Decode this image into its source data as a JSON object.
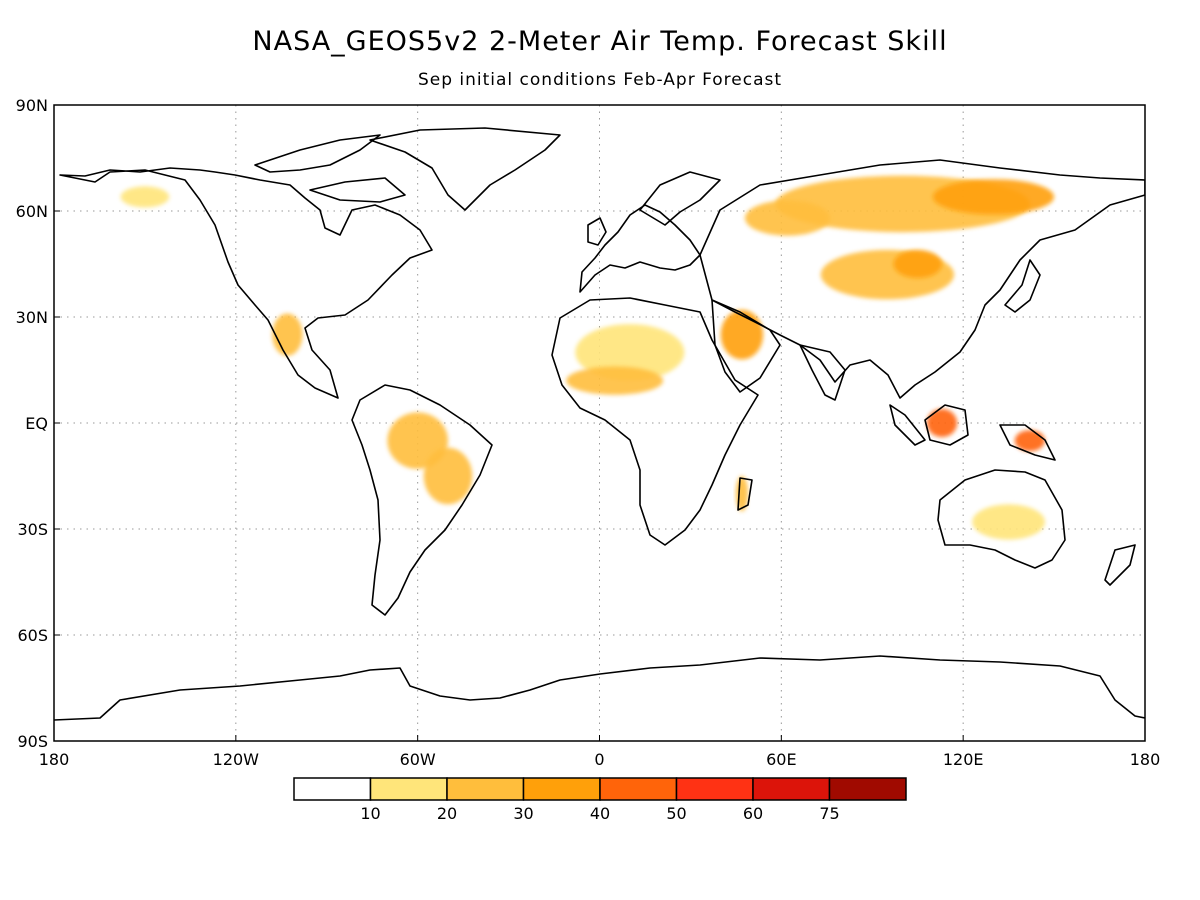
{
  "title": "NASA_GEOS5v2 2-Meter Air Temp. Forecast Skill",
  "subtitle": "Sep initial conditions  Feb-Apr Forecast",
  "map": {
    "lon_range": [
      -180,
      180
    ],
    "lat_range": [
      -90,
      90
    ],
    "gridlines": "dotted",
    "lat_ticks": [
      {
        "value": 90,
        "label": "90N"
      },
      {
        "value": 60,
        "label": "60N"
      },
      {
        "value": 30,
        "label": "30N"
      },
      {
        "value": 0,
        "label": "EQ"
      },
      {
        "value": -30,
        "label": "30S"
      },
      {
        "value": -60,
        "label": "60S"
      },
      {
        "value": -90,
        "label": "90S"
      }
    ],
    "lon_ticks": [
      {
        "value": -180,
        "label": "180"
      },
      {
        "value": -120,
        "label": "120W"
      },
      {
        "value": -60,
        "label": "60W"
      },
      {
        "value": 0,
        "label": "0"
      },
      {
        "value": 60,
        "label": "60E"
      },
      {
        "value": 120,
        "label": "120E"
      },
      {
        "value": 180,
        "label": "180"
      }
    ]
  },
  "colorbar": {
    "bins": [
      {
        "color": "#ffffff"
      },
      {
        "color": "#ffe57a"
      },
      {
        "color": "#ffbe3c"
      },
      {
        "color": "#ffa00a"
      },
      {
        "color": "#ff640a"
      },
      {
        "color": "#ff3214"
      },
      {
        "color": "#dc140a"
      },
      {
        "color": "#a00a00"
      }
    ],
    "labels": [
      "10",
      "20",
      "30",
      "40",
      "50",
      "60",
      "75"
    ]
  },
  "skill_regions": [
    {
      "name": "siberia",
      "lon": 100,
      "lat": 62,
      "rx": 42,
      "ry": 8,
      "level": 2
    },
    {
      "name": "east-siberia",
      "lon": 130,
      "lat": 64,
      "rx": 20,
      "ry": 5,
      "level": 3
    },
    {
      "name": "ural",
      "lon": 62,
      "lat": 58,
      "rx": 14,
      "ry": 5,
      "level": 2
    },
    {
      "name": "central-asia",
      "lon": 95,
      "lat": 42,
      "rx": 22,
      "ry": 7,
      "level": 2
    },
    {
      "name": "mongolia",
      "lon": 105,
      "lat": 45,
      "rx": 8,
      "ry": 4,
      "level": 3
    },
    {
      "name": "arabia",
      "lon": 47,
      "lat": 25,
      "rx": 7,
      "ry": 7,
      "level": 3
    },
    {
      "name": "sahara",
      "lon": 10,
      "lat": 20,
      "rx": 18,
      "ry": 8,
      "level": 1
    },
    {
      "name": "sahel",
      "lon": 5,
      "lat": 12,
      "rx": 16,
      "ry": 4,
      "level": 2
    },
    {
      "name": "borneo",
      "lon": 113,
      "lat": 0,
      "rx": 5,
      "ry": 4,
      "level": 4
    },
    {
      "name": "new-guinea",
      "lon": 142,
      "lat": -5,
      "rx": 5,
      "ry": 3,
      "level": 4
    },
    {
      "name": "amazon",
      "lon": -60,
      "lat": -5,
      "rx": 10,
      "ry": 8,
      "level": 2
    },
    {
      "name": "brazil",
      "lon": -50,
      "lat": -15,
      "rx": 8,
      "ry": 8,
      "level": 2
    },
    {
      "name": "mexico",
      "lon": -103,
      "lat": 25,
      "rx": 5,
      "ry": 6,
      "level": 2
    },
    {
      "name": "australia",
      "lon": 135,
      "lat": -28,
      "rx": 12,
      "ry": 5,
      "level": 1
    },
    {
      "name": "alaska",
      "lon": -150,
      "lat": 64,
      "rx": 8,
      "ry": 3,
      "level": 1
    },
    {
      "name": "madagascar",
      "lon": 47,
      "lat": -20,
      "rx": 2,
      "ry": 5,
      "level": 2
    }
  ]
}
